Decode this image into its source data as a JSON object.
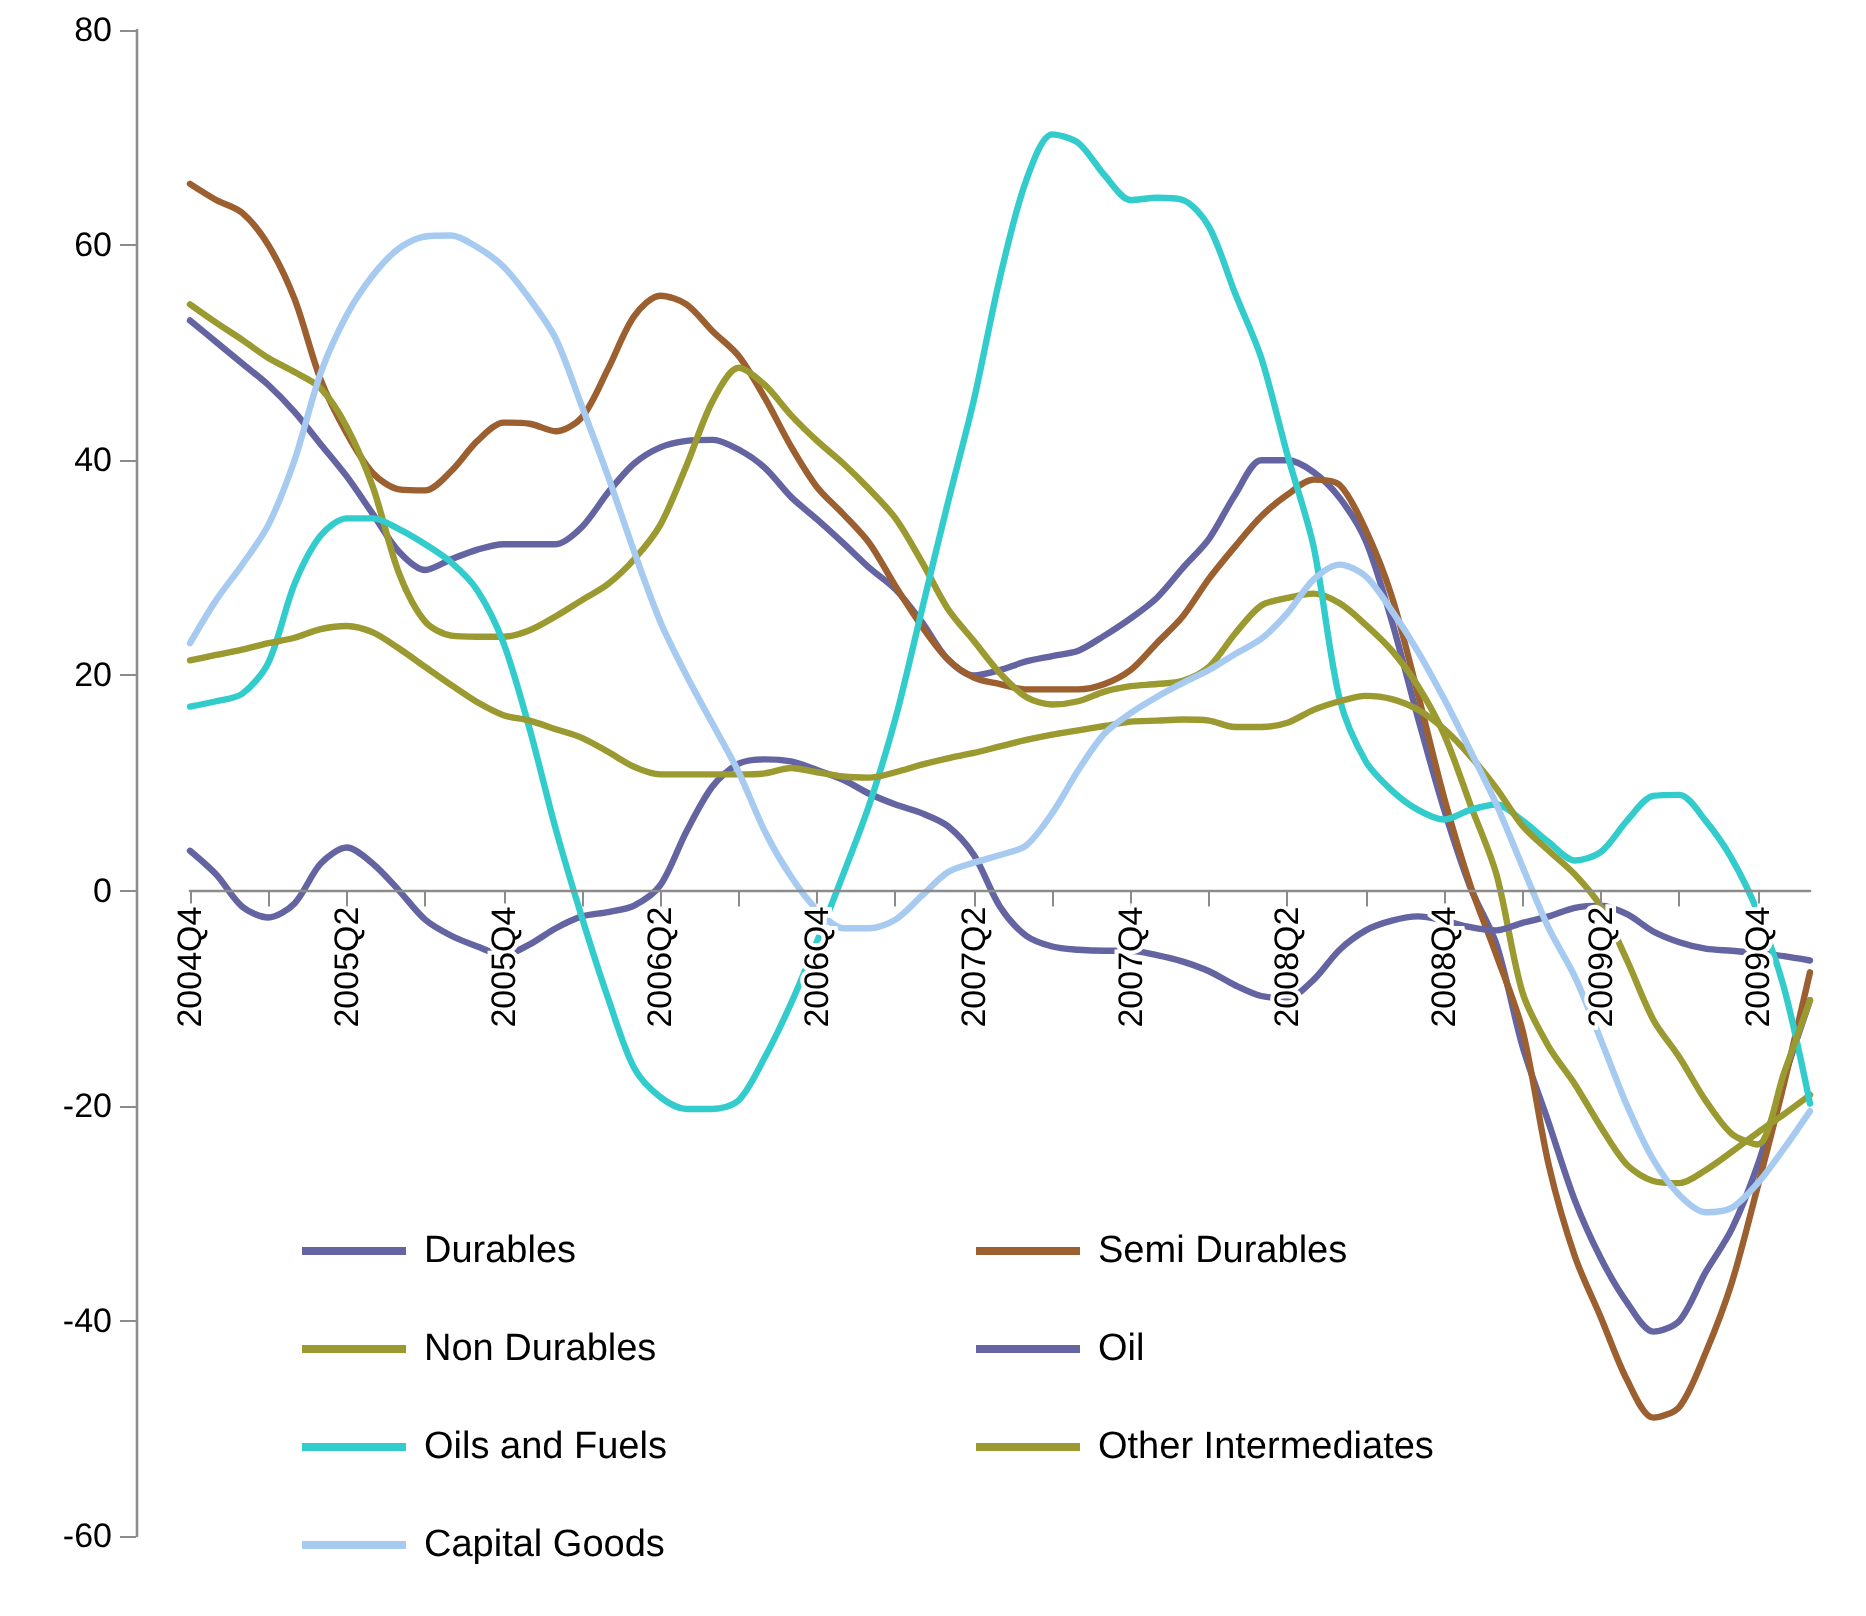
{
  "chart_data": {
    "type": "line",
    "categories": [
      "2004Q4",
      null,
      null,
      null,
      null,
      null,
      "2005Q2",
      null,
      null,
      null,
      null,
      null,
      "2005Q4",
      null,
      null,
      null,
      null,
      null,
      "2006Q2",
      null,
      null,
      null,
      null,
      null,
      "2006Q4",
      null,
      null,
      null,
      null,
      null,
      "2007Q2",
      null,
      null,
      null,
      null,
      null,
      "2007Q4",
      null,
      null,
      null,
      null,
      null,
      "2008Q2",
      null,
      null,
      null,
      null,
      null,
      "2008Q4",
      null,
      null,
      null,
      null,
      null,
      "2009Q2",
      null,
      null,
      null,
      null,
      null,
      "2009Q4",
      null,
      null
    ],
    "series": [
      {
        "name": "Durables",
        "color": "#6464a2",
        "values": [
          53,
          51,
          49,
          47,
          44.5,
          41.5,
          38.5,
          35,
          31.5,
          29.8,
          30.8,
          31.7,
          32.2,
          32.2,
          32.2,
          33.8,
          37,
          39.7,
          41.2,
          41.8,
          41.9,
          41,
          39.3,
          36.6,
          34.5,
          32.3,
          30,
          28,
          25,
          21.5,
          20,
          20.5,
          21.3,
          21.8,
          22.3,
          23.7,
          25.3,
          27.2,
          30,
          32.7,
          36.8,
          40,
          40,
          38.9,
          36.5,
          32.5,
          25,
          16,
          7.5,
          0.3,
          -5,
          -14.5,
          -21.6,
          -28.8,
          -34.2,
          -38.3,
          -41,
          -40,
          -35.5,
          -31.5,
          -25.5,
          -17.5,
          -10.2
        ]
      },
      {
        "name": "Semi Durables",
        "color": "#9b5f30",
        "values": [
          65.7,
          64.2,
          63,
          60,
          55,
          47.5,
          42.5,
          38.8,
          37.3,
          37.2,
          39,
          41.8,
          43.5,
          43.4,
          42.7,
          44,
          48.5,
          53.4,
          55.3,
          54.5,
          52,
          49.7,
          45.8,
          41.3,
          37.5,
          35,
          32.3,
          28.3,
          24.6,
          21.5,
          19.8,
          19.2,
          18.7,
          18.7,
          18.7,
          19.2,
          20.5,
          23,
          25.5,
          29,
          32,
          34.8,
          36.8,
          38.2,
          37.7,
          33.5,
          27.3,
          18.2,
          8.6,
          0.5,
          -6,
          -13,
          -25.5,
          -34,
          -39.7,
          -45.5,
          -49,
          -48,
          -43,
          -36.5,
          -27.5,
          -18,
          -7.6
        ]
      },
      {
        "name": "Non Durables",
        "color": "#9a9a30",
        "values": [
          54.5,
          52.8,
          51.2,
          49.5,
          48.2,
          46.7,
          43.1,
          37.5,
          29.5,
          25,
          23.7,
          23.6,
          23.6,
          24.2,
          25.5,
          27,
          28.5,
          30.8,
          34,
          39.5,
          45.5,
          48.6,
          47,
          44.2,
          41.8,
          39.7,
          37.3,
          34.6,
          30.6,
          26.2,
          23.2,
          20.2,
          18,
          17.3,
          17.6,
          18.5,
          19,
          19.2,
          19.5,
          20.8,
          23.9,
          26.5,
          27.2,
          27.6,
          26.7,
          24.7,
          22.3,
          19,
          14.5,
          8,
          1.5,
          -9.5,
          -14.5,
          -18,
          -22,
          -25.5,
          -27,
          -27.2,
          -26,
          -24.3,
          -22.5,
          -20.8,
          -19
        ]
      },
      {
        "name": "Oil",
        "color": "#6464a2",
        "values": [
          3.7,
          1.5,
          -1.5,
          -2.5,
          -1.2,
          2.5,
          4,
          2.5,
          0,
          -2.7,
          -4.2,
          -5.2,
          -6,
          -5,
          -3.5,
          -2.4,
          -2,
          -1.4,
          0.5,
          5.5,
          9.7,
          11.8,
          12.2,
          12,
          11.2,
          10.3,
          9,
          8,
          7.2,
          6,
          3.3,
          -1.5,
          -4.2,
          -5.2,
          -5.5,
          -5.6,
          -5.6,
          -6,
          -6.6,
          -7.5,
          -8.8,
          -9.8,
          -10,
          -8.3,
          -5.5,
          -3.7,
          -2.8,
          -2.4,
          -2.8,
          -3.4,
          -3.7,
          -3,
          -2.4,
          -1.6,
          -1.4,
          -2.2,
          -3.8,
          -4.8,
          -5.4,
          -5.6,
          -5.8,
          -6.1,
          -6.5
        ]
      },
      {
        "name": "Oils and Fuels",
        "color": "#33cccc",
        "values": [
          17.1,
          17.6,
          18.3,
          21.2,
          28.5,
          33,
          34.6,
          34.6,
          33.6,
          32.2,
          30.5,
          27.9,
          23,
          15,
          5.7,
          -2.5,
          -10,
          -16.5,
          -19.2,
          -20.3,
          -20.3,
          -19.5,
          -15.5,
          -10.5,
          -4.7,
          1.5,
          8,
          16,
          26,
          36,
          45.6,
          57,
          66,
          70.3,
          69.5,
          66.5,
          64.2,
          64.4,
          64.2,
          61.7,
          55.5,
          49.5,
          40.5,
          32,
          17.8,
          12,
          9.3,
          7.5,
          6.6,
          7.5,
          8,
          6.5,
          4.5,
          2.8,
          3.6,
          6.5,
          8.8,
          8.9,
          6.5,
          3,
          -2,
          -9,
          -19.8
        ]
      },
      {
        "name": "Other Intermediates",
        "color": "#9a9a30",
        "values": [
          21.4,
          21.9,
          22.4,
          23,
          23.5,
          24.3,
          24.6,
          24,
          22.5,
          20.8,
          19.1,
          17.5,
          16.3,
          15.8,
          15,
          14.2,
          12.9,
          11.5,
          10.8,
          10.8,
          10.8,
          10.8,
          10.9,
          11.4,
          11,
          10.6,
          10.5,
          11,
          11.7,
          12.3,
          12.8,
          13.4,
          14,
          14.5,
          14.9,
          15.3,
          15.7,
          15.8,
          15.9,
          15.8,
          15.2,
          15.2,
          15.6,
          16.8,
          17.6,
          18.1,
          17.8,
          16.8,
          15,
          12.5,
          9.5,
          6,
          3.7,
          1.5,
          -1.5,
          -6.5,
          -12,
          -15.5,
          -19.5,
          -22.6,
          -23.6,
          -17,
          -10.2
        ]
      },
      {
        "name": "Capital Goods",
        "color": "#a6caf0",
        "values": [
          23,
          27,
          30.3,
          34,
          40,
          48.1,
          53.5,
          57.2,
          59.7,
          60.8,
          60.9,
          59.8,
          58,
          55,
          51.3,
          45,
          38.5,
          31.5,
          25,
          20,
          15.5,
          11,
          5.5,
          1.3,
          -1.8,
          -3.5,
          -3.5,
          -2.7,
          -0.5,
          1.7,
          2.6,
          3.3,
          4.2,
          7.2,
          11.2,
          14.6,
          16.5,
          18,
          19.3,
          20.5,
          22,
          23.4,
          25.8,
          28.9,
          30.3,
          29.2,
          26,
          22.2,
          17.8,
          13,
          8,
          2.2,
          -3.5,
          -8,
          -13.9,
          -20,
          -25,
          -28.3,
          -29.9,
          -29.5,
          -27.2,
          -24,
          -20.5
        ]
      }
    ],
    "ylim": [
      -60,
      80
    ],
    "yticks": [
      -60,
      -40,
      -20,
      0,
      20,
      40,
      60,
      80
    ],
    "grid": false,
    "legend": "bottom",
    "marker": "none",
    "line_style": "solid"
  }
}
